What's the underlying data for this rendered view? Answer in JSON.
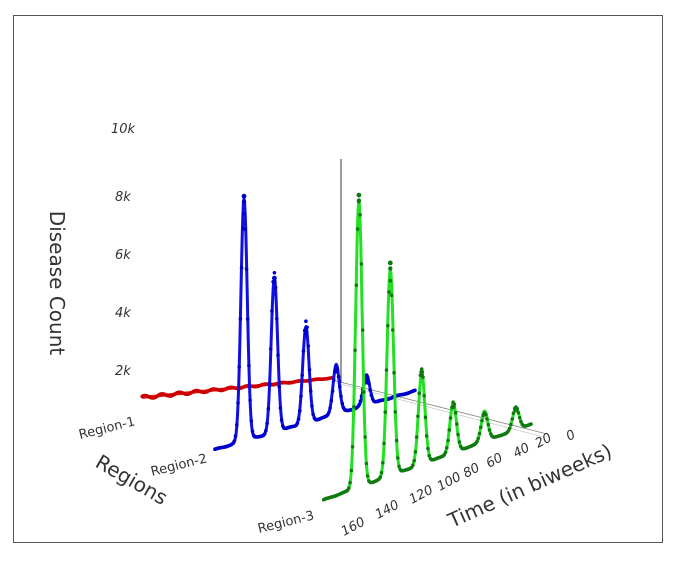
{
  "chart_data": {
    "type": "line",
    "subtype": "3d-ribbon",
    "xlabel": "Time (in biweeks)",
    "ylabel": "Regions",
    "zlabel": "Disease Count",
    "x_ticks": [
      "0",
      "20",
      "40",
      "60",
      "80",
      "100",
      "120",
      "140",
      "160"
    ],
    "x_tick_values": [
      0,
      20,
      40,
      60,
      80,
      100,
      120,
      140,
      160
    ],
    "regions": [
      "Region-1",
      "Region-2",
      "Region-3"
    ],
    "z_ticks": [
      "2k",
      "4k",
      "6k",
      "8k",
      "10k"
    ],
    "z_tick_values": [
      2000,
      4000,
      6000,
      8000,
      10000
    ],
    "xlim": [
      0,
      165
    ],
    "zlim": [
      0,
      10500
    ],
    "series": [
      {
        "name": "Region-1",
        "color": "#e02020",
        "baseline": 150,
        "end_value": 1050,
        "peaks": [],
        "point_peaks": []
      },
      {
        "name": "Region-2",
        "color": "#1010e0",
        "baseline": 300,
        "end_value": 300,
        "peaks": [
          {
            "x": 141,
            "value": 8800,
            "width": 2.6
          },
          {
            "x": 116,
            "value": 5600,
            "width": 2.6
          },
          {
            "x": 90,
            "value": 3500,
            "width": 2.6
          },
          {
            "x": 65,
            "value": 1800,
            "width": 2.6
          },
          {
            "x": 40,
            "value": 1100,
            "width": 2.6
          }
        ],
        "point_peaks": [
          9200,
          5900,
          3600,
          1900,
          1150
        ]
      },
      {
        "name": "Region-3",
        "color": "#22e022",
        "baseline": 100,
        "end_value": 200,
        "peaks": [
          {
            "x": 137,
            "value": 10400,
            "width": 2.6
          },
          {
            "x": 112,
            "value": 7500,
            "width": 2.6
          },
          {
            "x": 87,
            "value": 3300,
            "width": 2.6
          },
          {
            "x": 62,
            "value": 1800,
            "width": 2.6
          },
          {
            "x": 37,
            "value": 1100,
            "width": 2.6
          },
          {
            "x": 12,
            "value": 800,
            "width": 2.6
          }
        ],
        "point_peaks": [
          10800,
          7900,
          3500,
          1800,
          1100,
          850
        ]
      }
    ],
    "point_colors": {
      "Region-1": "#cc0000",
      "Region-2": "#0000cc",
      "Region-3": "#107a10"
    }
  }
}
